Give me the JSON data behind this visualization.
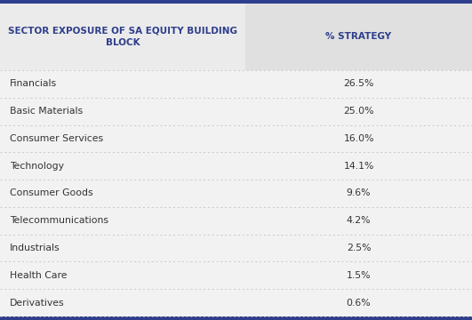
{
  "col1_header": "SECTOR EXPOSURE OF SA EQUITY BUILDING\nBLOCK",
  "col2_header": "% STRATEGY",
  "rows": [
    [
      "Financials",
      "26.5%"
    ],
    [
      "Basic Materials",
      "25.0%"
    ],
    [
      "Consumer Services",
      "16.0%"
    ],
    [
      "Technology",
      "14.1%"
    ],
    [
      "Consumer Goods",
      "9.6%"
    ],
    [
      "Telecommunications",
      "4.2%"
    ],
    [
      "Industrials",
      "2.5%"
    ],
    [
      "Health Care",
      "1.5%"
    ],
    [
      "Derivatives",
      "0.6%"
    ]
  ],
  "header_text_color": "#2E3E8C",
  "header_bg_col1": "#EBEBEB",
  "header_bg_col2": "#E0E0E0",
  "row_bg": "#F2F2F2",
  "row_text_color": "#333333",
  "border_color": "#2E3E8C",
  "divider_color": "#BBBBBB",
  "col_split": 0.52,
  "fig_bg": "#FFFFFF",
  "border_linewidth": 3.0,
  "header_fontsize": 7.5,
  "row_fontsize": 7.8
}
